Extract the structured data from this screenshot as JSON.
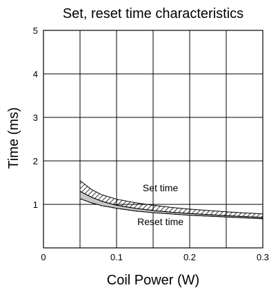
{
  "chart_data": {
    "type": "area",
    "title": "Set, reset time characteristics",
    "xlabel": "Coil Power (W)",
    "ylabel": "Time (ms)",
    "xlim": [
      0,
      0.3
    ],
    "ylim": [
      0,
      5
    ],
    "xticks": [
      0,
      0.1,
      0.2,
      0.3
    ],
    "xtick_labels": [
      "0",
      "0.1",
      "0.2",
      "0.3"
    ],
    "yticks": [
      1,
      2,
      3,
      4,
      5
    ],
    "ytick_labels": [
      "1",
      "2",
      "3",
      "4",
      "5"
    ],
    "grid": true,
    "legend": "none",
    "bands": [
      {
        "name": "Set time",
        "fill": "hatched",
        "x": [
          0.05,
          0.065,
          0.08,
          0.1,
          0.125,
          0.15,
          0.175,
          0.2,
          0.25,
          0.3
        ],
        "upper": [
          1.55,
          1.35,
          1.22,
          1.12,
          1.04,
          0.98,
          0.93,
          0.89,
          0.83,
          0.78
        ],
        "lower": [
          1.3,
          1.17,
          1.07,
          0.98,
          0.91,
          0.86,
          0.82,
          0.79,
          0.74,
          0.7
        ]
      },
      {
        "name": "Reset time",
        "fill": "gray",
        "x": [
          0.05,
          0.065,
          0.08,
          0.1,
          0.125,
          0.15,
          0.175,
          0.2,
          0.25,
          0.3
        ],
        "upper": [
          1.3,
          1.17,
          1.07,
          0.98,
          0.91,
          0.86,
          0.82,
          0.79,
          0.74,
          0.7
        ],
        "lower": [
          1.13,
          1.04,
          0.97,
          0.91,
          0.85,
          0.81,
          0.78,
          0.75,
          0.71,
          0.67
        ]
      }
    ],
    "annotations": [
      {
        "text": "Set time",
        "x": 0.16,
        "y": 1.3
      },
      {
        "text": "Reset time",
        "x": 0.16,
        "y": 0.52
      }
    ],
    "colors": {
      "hatch": "#000000",
      "gray_band": "#c8c8c8",
      "grid": "#000000"
    }
  }
}
